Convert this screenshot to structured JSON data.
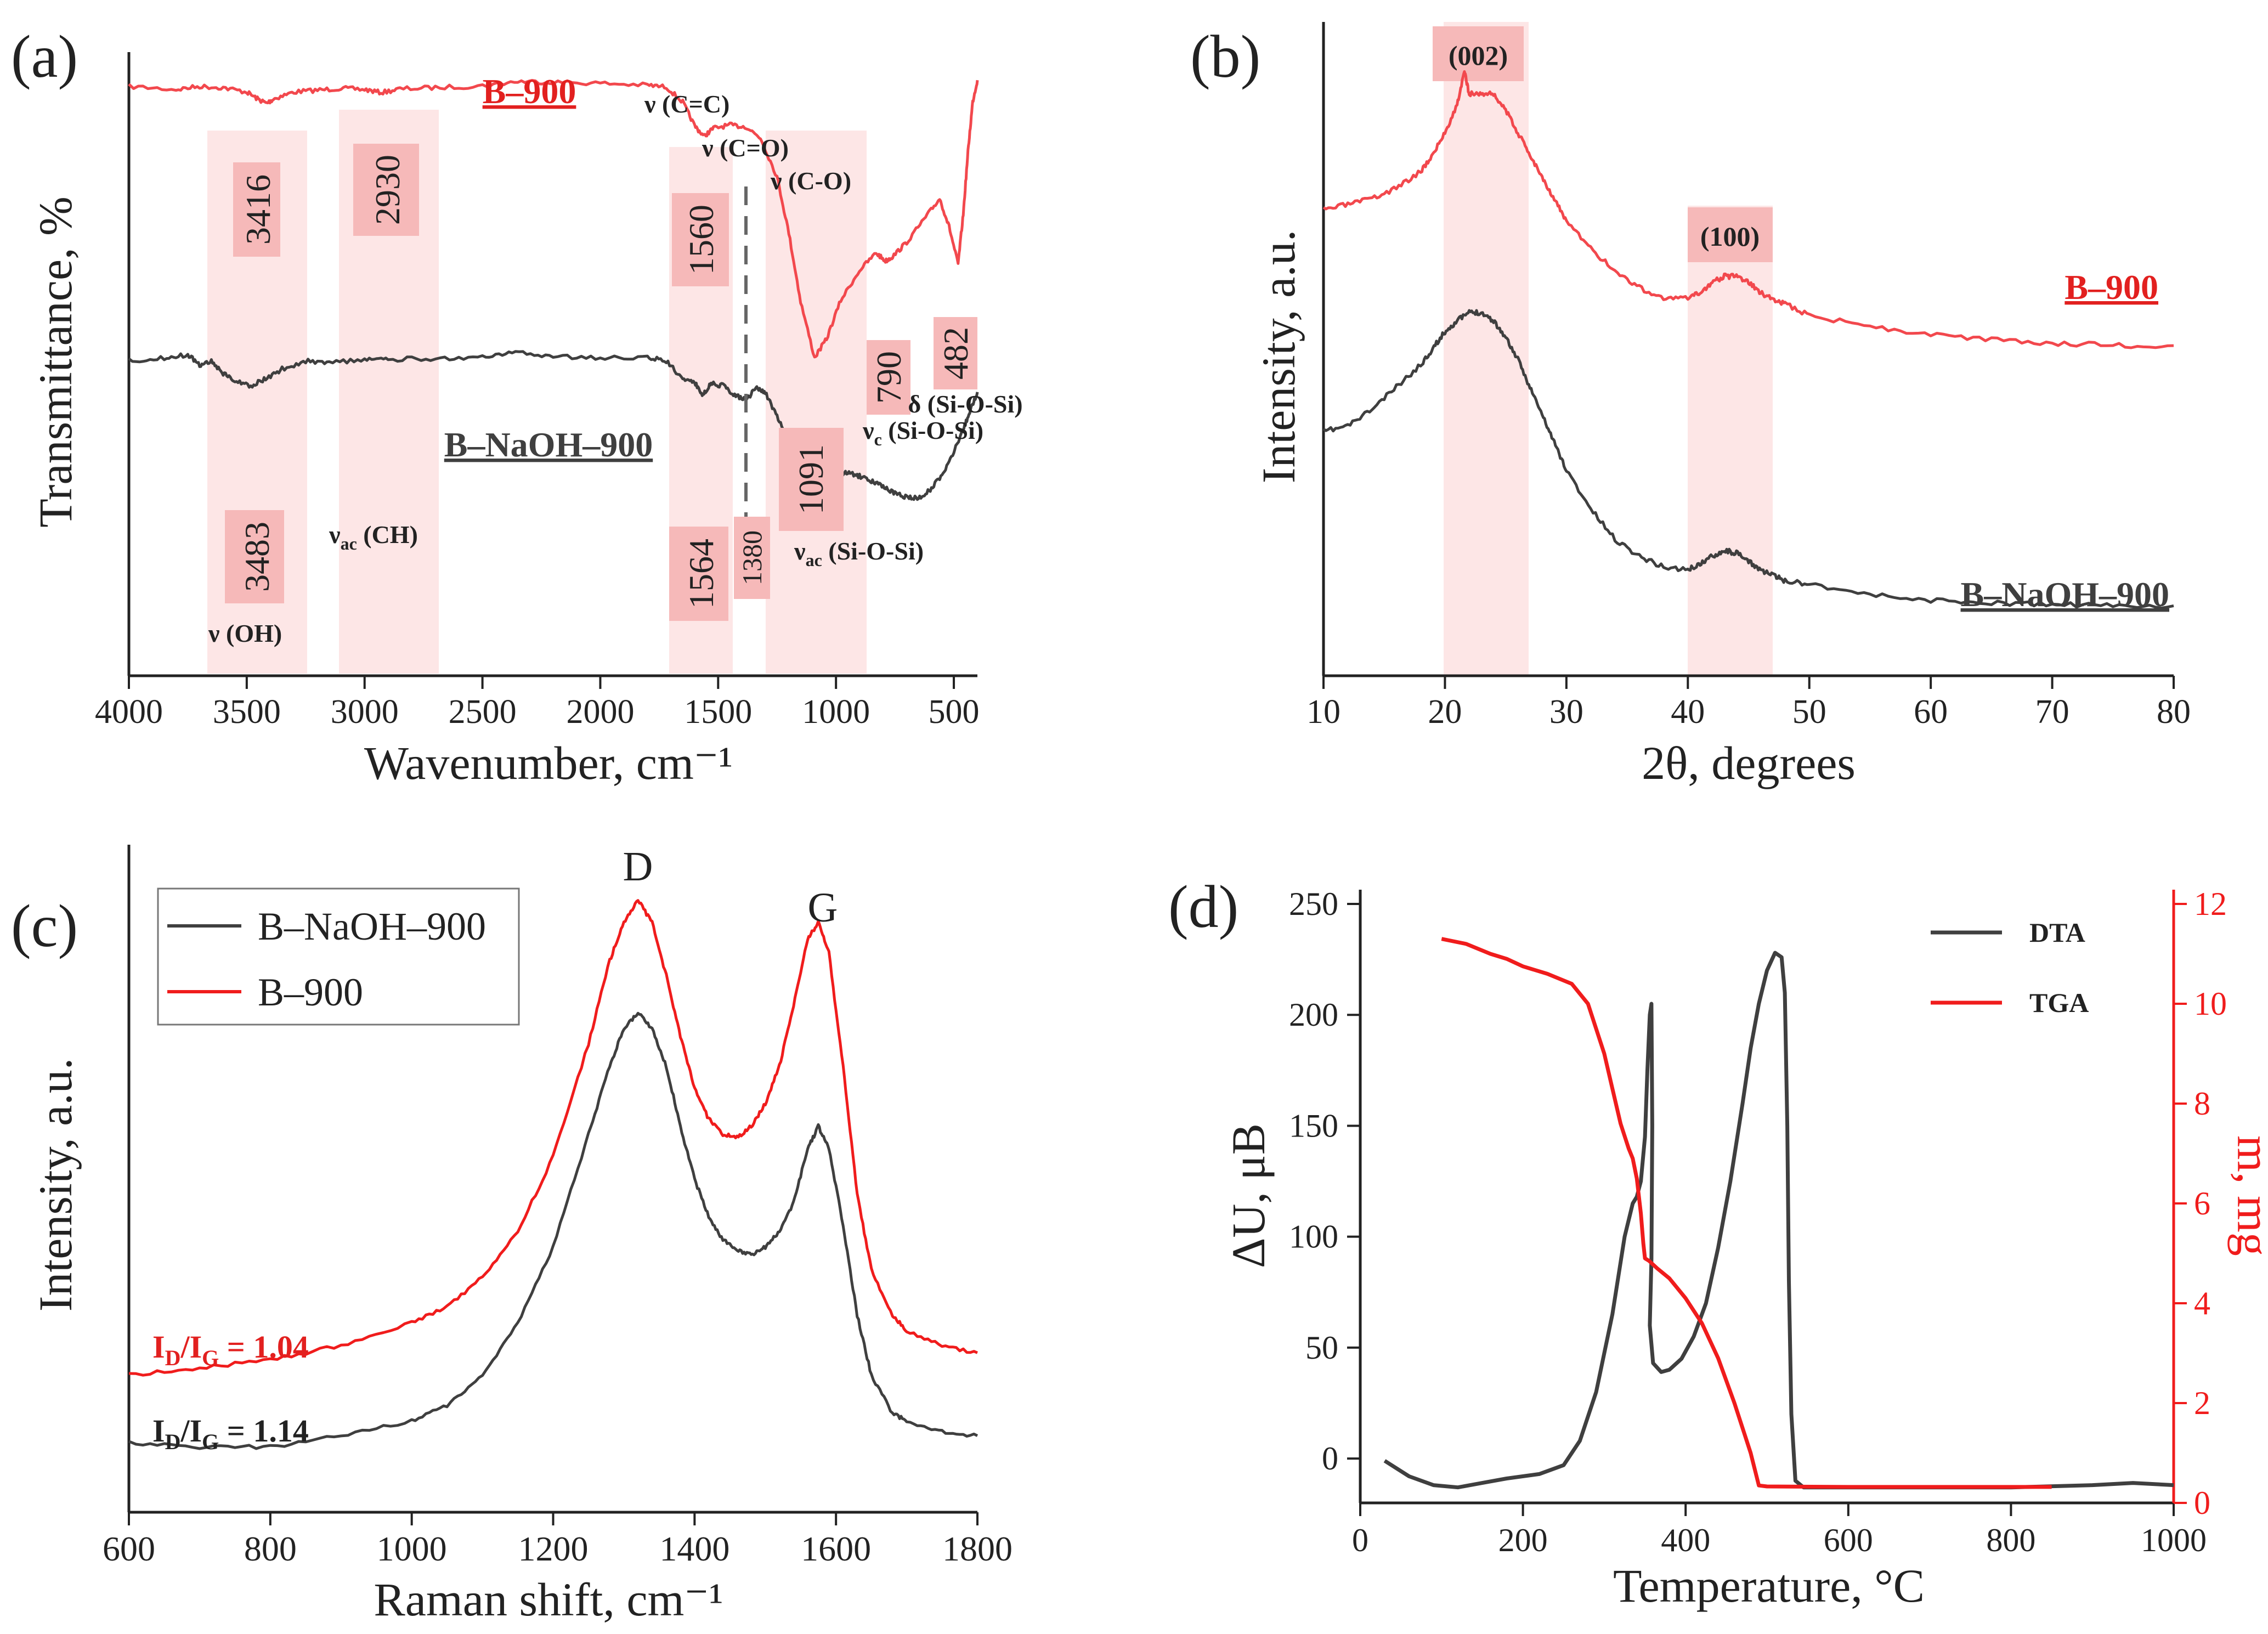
{
  "colors": {
    "red": "#f2484d",
    "red_bright": "#f01c1c",
    "dark": "#3f3f3f",
    "band": "#fde6e6",
    "box": "#f6b9b9",
    "label_red": "#e2201f"
  },
  "chart_data": [
    {
      "panel": "(a)",
      "type": "line",
      "xlabel": "Wavenumber, cm⁻¹",
      "ylabel": "Transmittance, %",
      "xlim": [
        4000,
        400
      ],
      "x_ticks": [
        "4000",
        "3500",
        "3000",
        "2500",
        "2000",
        "1500",
        "1000",
        "500"
      ],
      "series": [
        {
          "name": "B–900",
          "x": [
            4000,
            3800,
            3700,
            3600,
            3500,
            3450,
            3416,
            3380,
            3300,
            3200,
            3100,
            3000,
            2930,
            2850,
            2700,
            2500,
            2350,
            2200,
            2000,
            1800,
            1720,
            1650,
            1600,
            1560,
            1520,
            1450,
            1380,
            1320,
            1250,
            1200,
            1150,
            1091,
            1040,
            980,
            900,
            830,
            790,
            760,
            700,
            620,
            560,
            520,
            482,
            460,
            440,
            420,
            400
          ],
          "y": [
            94.5,
            94.0,
            94.5,
            94.3,
            93.6,
            92.4,
            91.8,
            92.6,
            93.6,
            93.9,
            94.2,
            94.0,
            93.5,
            94.1,
            94.3,
            94.6,
            95.3,
            95.2,
            95.0,
            94.7,
            94.4,
            92.0,
            88.2,
            86.5,
            87.8,
            88.3,
            88.0,
            86.2,
            80.0,
            71.0,
            60.0,
            51.0,
            54.0,
            60.2,
            65.0,
            67.8,
            66.5,
            67.2,
            69.5,
            73.5,
            76.5,
            72.0,
            66.0,
            74.0,
            84.0,
            92.0,
            95.5
          ]
        },
        {
          "name": "B–NaOH–900",
          "x": [
            4000,
            3850,
            3750,
            3700,
            3650,
            3600,
            3550,
            3483,
            3420,
            3350,
            3250,
            3150,
            3000,
            2900,
            2700,
            2500,
            2360,
            2200,
            2000,
            1800,
            1720,
            1650,
            1600,
            1564,
            1530,
            1480,
            1430,
            1380,
            1340,
            1300,
            1250,
            1200,
            1150,
            1100,
            1050,
            1000,
            950,
            900,
            850,
            800,
            750,
            700,
            650,
            600,
            550,
            500,
            460,
            430,
            400
          ],
          "y": [
            50.5,
            51.0,
            51.5,
            49.8,
            50.5,
            48.5,
            47.3,
            46.5,
            47.6,
            49.2,
            50.5,
            50.3,
            50.6,
            50.7,
            50.9,
            51.0,
            51.8,
            51.2,
            51.0,
            51.0,
            50.5,
            47.6,
            47.0,
            45.0,
            46.9,
            46.5,
            45.0,
            44.2,
            46.2,
            45.4,
            41.5,
            38.0,
            34.2,
            32.0,
            31.3,
            32.0,
            32.6,
            32.0,
            31.2,
            30.3,
            29.2,
            28.6,
            28.5,
            29.8,
            32.2,
            36.0,
            39.5,
            42.5,
            45.5
          ]
        }
      ],
      "title_labels": {
        "top": "B–900",
        "bottom": "B–NaOH–900"
      },
      "peak_labels_top": [
        "3416",
        "2930",
        "1560",
        "790",
        "482"
      ],
      "peak_labels_bottom": [
        "3483",
        "1564",
        "1380",
        "1091"
      ],
      "vibration_notes": {
        "cc": "ν (C=C)",
        "co_double": "ν (C=O)",
        "co_single": "ν (C-O)",
        "oh": "ν (OH)",
        "ch": "ν",
        "ch_sub": "ac",
        "ch_tail": " (CH)",
        "sios_c": "ν",
        "sios_c_sub": "c",
        "sios_c_tail": " (Si-O-Si)",
        "sios_delta": "δ (Si-O-Si)",
        "sios_ac": "ν",
        "sios_ac_sub": "ac",
        "sios_ac_tail": " (Si-O-Si)"
      }
    },
    {
      "panel": "(b)",
      "type": "line",
      "xlabel": "2θ, degrees",
      "ylabel": "Intensity, a.u.",
      "xlim": [
        10,
        80
      ],
      "x_ticks": [
        "10",
        "20",
        "30",
        "40",
        "50",
        "60",
        "70",
        "80"
      ],
      "series": [
        {
          "name": "B–900",
          "x": [
            10,
            12,
            14,
            16,
            18,
            19,
            20,
            21,
            21.6,
            22,
            23,
            24,
            25,
            26,
            27,
            28,
            29,
            30,
            32,
            34,
            36,
            38,
            40,
            41,
            42,
            43,
            44,
            45,
            46,
            47,
            48,
            50,
            55,
            60,
            65,
            70,
            75,
            80
          ],
          "y": [
            78,
            79,
            80,
            82,
            85,
            88,
            92,
            97,
            103,
            99,
            99,
            99,
            96,
            92,
            88,
            84,
            80,
            76,
            71,
            67,
            64,
            62,
            62,
            63,
            65,
            66,
            66,
            65,
            63,
            62,
            61,
            59,
            57,
            55.5,
            54.5,
            54,
            53.5,
            53.5
          ]
        },
        {
          "name": "B–NaOH–900",
          "x": [
            10,
            12,
            14,
            16,
            18,
            19,
            20,
            21,
            22,
            23,
            24,
            25,
            26,
            27,
            28,
            29,
            30,
            32,
            34,
            36,
            38,
            40,
            41,
            42,
            43,
            44,
            45,
            46,
            47,
            48,
            50,
            55,
            60,
            65,
            70,
            75,
            80
          ],
          "y": [
            38,
            39,
            42,
            46,
            50,
            53,
            56,
            58,
            59.5,
            59.5,
            58,
            55,
            51,
            46,
            41,
            36,
            31,
            24,
            18.5,
            15.5,
            13.5,
            13,
            14,
            15.5,
            16.5,
            16,
            14.5,
            13,
            12,
            11,
            10.5,
            8.5,
            7.5,
            7,
            6.7,
            6.5,
            6.5
          ]
        }
      ],
      "peak_labels": [
        "(002)",
        "(100)"
      ],
      "series_labels": {
        "top": "B–900",
        "bottom": "B–NaOH–900"
      }
    },
    {
      "panel": "(c)",
      "type": "line",
      "xlabel": "Raman shift, cm⁻¹",
      "ylabel": "Intensity, a.u.",
      "xlim": [
        600,
        1800
      ],
      "x_ticks": [
        "600",
        "800",
        "1000",
        "1200",
        "1400",
        "1600",
        "1800"
      ],
      "legend": [
        "B–NaOH–900",
        "B–900"
      ],
      "series": [
        {
          "name": "B–NaOH–900",
          "x": [
            600,
            700,
            800,
            900,
            1000,
            1050,
            1100,
            1150,
            1200,
            1250,
            1280,
            1300,
            1320,
            1340,
            1360,
            1380,
            1400,
            1420,
            1440,
            1460,
            1480,
            1500,
            1520,
            1540,
            1560,
            1575,
            1590,
            1610,
            1630,
            1650,
            1680,
            1700,
            1750,
            1800
          ],
          "y": [
            5,
            4.5,
            4.5,
            6,
            8,
            10,
            14,
            21,
            31,
            46,
            55,
            60,
            62,
            60,
            55,
            47,
            40,
            35,
            32,
            30.5,
            30,
            31,
            33,
            37,
            44,
            47,
            44,
            34,
            22,
            14,
            9,
            8,
            6.5,
            6
          ]
        },
        {
          "name": "B–900",
          "x": [
            600,
            700,
            800,
            900,
            1000,
            1050,
            1100,
            1150,
            1200,
            1250,
            1280,
            1300,
            1320,
            1340,
            1360,
            1380,
            1400,
            1420,
            1440,
            1460,
            1480,
            1500,
            1520,
            1540,
            1560,
            1575,
            1590,
            1610,
            1630,
            1650,
            1680,
            1700,
            1750,
            1800
          ],
          "y": [
            14,
            15,
            16,
            18,
            21,
            23,
            27,
            33,
            43,
            58,
            69,
            74,
            77,
            74,
            67,
            59,
            52,
            48,
            46,
            45.5,
            47,
            50,
            55,
            63,
            72,
            74,
            70,
            55,
            38,
            28,
            22,
            20,
            18,
            17
          ]
        }
      ],
      "peak_labels": [
        "D",
        "G"
      ],
      "ratio_labels": [
        {
          "I": "I",
          "sub1": "D",
          "slash": "/I",
          "sub2": "G",
          "value": " = 1.04"
        },
        {
          "I": "I",
          "sub1": "D",
          "slash": "/I",
          "sub2": "G",
          "value": " = 1.14"
        }
      ]
    },
    {
      "panel": "(d)",
      "type": "line",
      "xlabel": "Temperature, °C",
      "ylabel": "ΔU, μB",
      "y2label": "m, mg",
      "xlim": [
        0,
        1000
      ],
      "ylim": [
        -20,
        250
      ],
      "y2lim": [
        0,
        12
      ],
      "x_ticks": [
        "0",
        "200",
        "400",
        "600",
        "800",
        "1000"
      ],
      "y_ticks": [
        "0",
        "50",
        "100",
        "150",
        "200",
        "250"
      ],
      "y2_ticks": [
        "0",
        "2",
        "4",
        "6",
        "8",
        "10",
        "12"
      ],
      "legend": [
        "DTA",
        "TGA"
      ],
      "series": [
        {
          "name": "DTA",
          "axis": "left",
          "x": [
            30,
            60,
            90,
            120,
            150,
            180,
            220,
            250,
            270,
            290,
            310,
            325,
            335,
            340,
            345,
            350,
            353,
            356,
            358,
            359,
            358,
            356,
            360,
            370,
            380,
            395,
            410,
            425,
            440,
            455,
            470,
            480,
            490,
            500,
            510,
            518,
            522,
            525,
            527,
            530,
            535,
            545,
            560,
            600,
            700,
            800,
            900,
            950,
            1000
          ],
          "y": [
            -1,
            -8,
            -12,
            -13,
            -11,
            -9,
            -7,
            -3,
            8,
            30,
            65,
            100,
            115,
            118,
            125,
            145,
            175,
            200,
            205,
            150,
            90,
            60,
            43,
            39,
            40,
            45,
            55,
            70,
            95,
            125,
            160,
            185,
            205,
            220,
            228,
            226,
            210,
            150,
            80,
            20,
            -10,
            -13,
            -13,
            -13,
            -13,
            -13,
            -12,
            -11,
            -12
          ]
        },
        {
          "name": "TGA",
          "axis": "right",
          "x": [
            100,
            130,
            160,
            180,
            200,
            230,
            260,
            280,
            300,
            310,
            320,
            330,
            335,
            340,
            345,
            348,
            350,
            355,
            365,
            380,
            400,
            420,
            440,
            460,
            480,
            490,
            500,
            600,
            700,
            800,
            850
          ],
          "y": [
            11.3,
            11.2,
            11.0,
            10.9,
            10.75,
            10.6,
            10.4,
            10.0,
            9.0,
            8.3,
            7.6,
            7.1,
            6.9,
            6.5,
            5.8,
            5.2,
            4.9,
            4.85,
            4.7,
            4.5,
            4.1,
            3.6,
            2.9,
            2.0,
            1.0,
            0.35,
            0.33,
            0.32,
            0.32,
            0.32,
            0.32
          ]
        }
      ]
    }
  ]
}
